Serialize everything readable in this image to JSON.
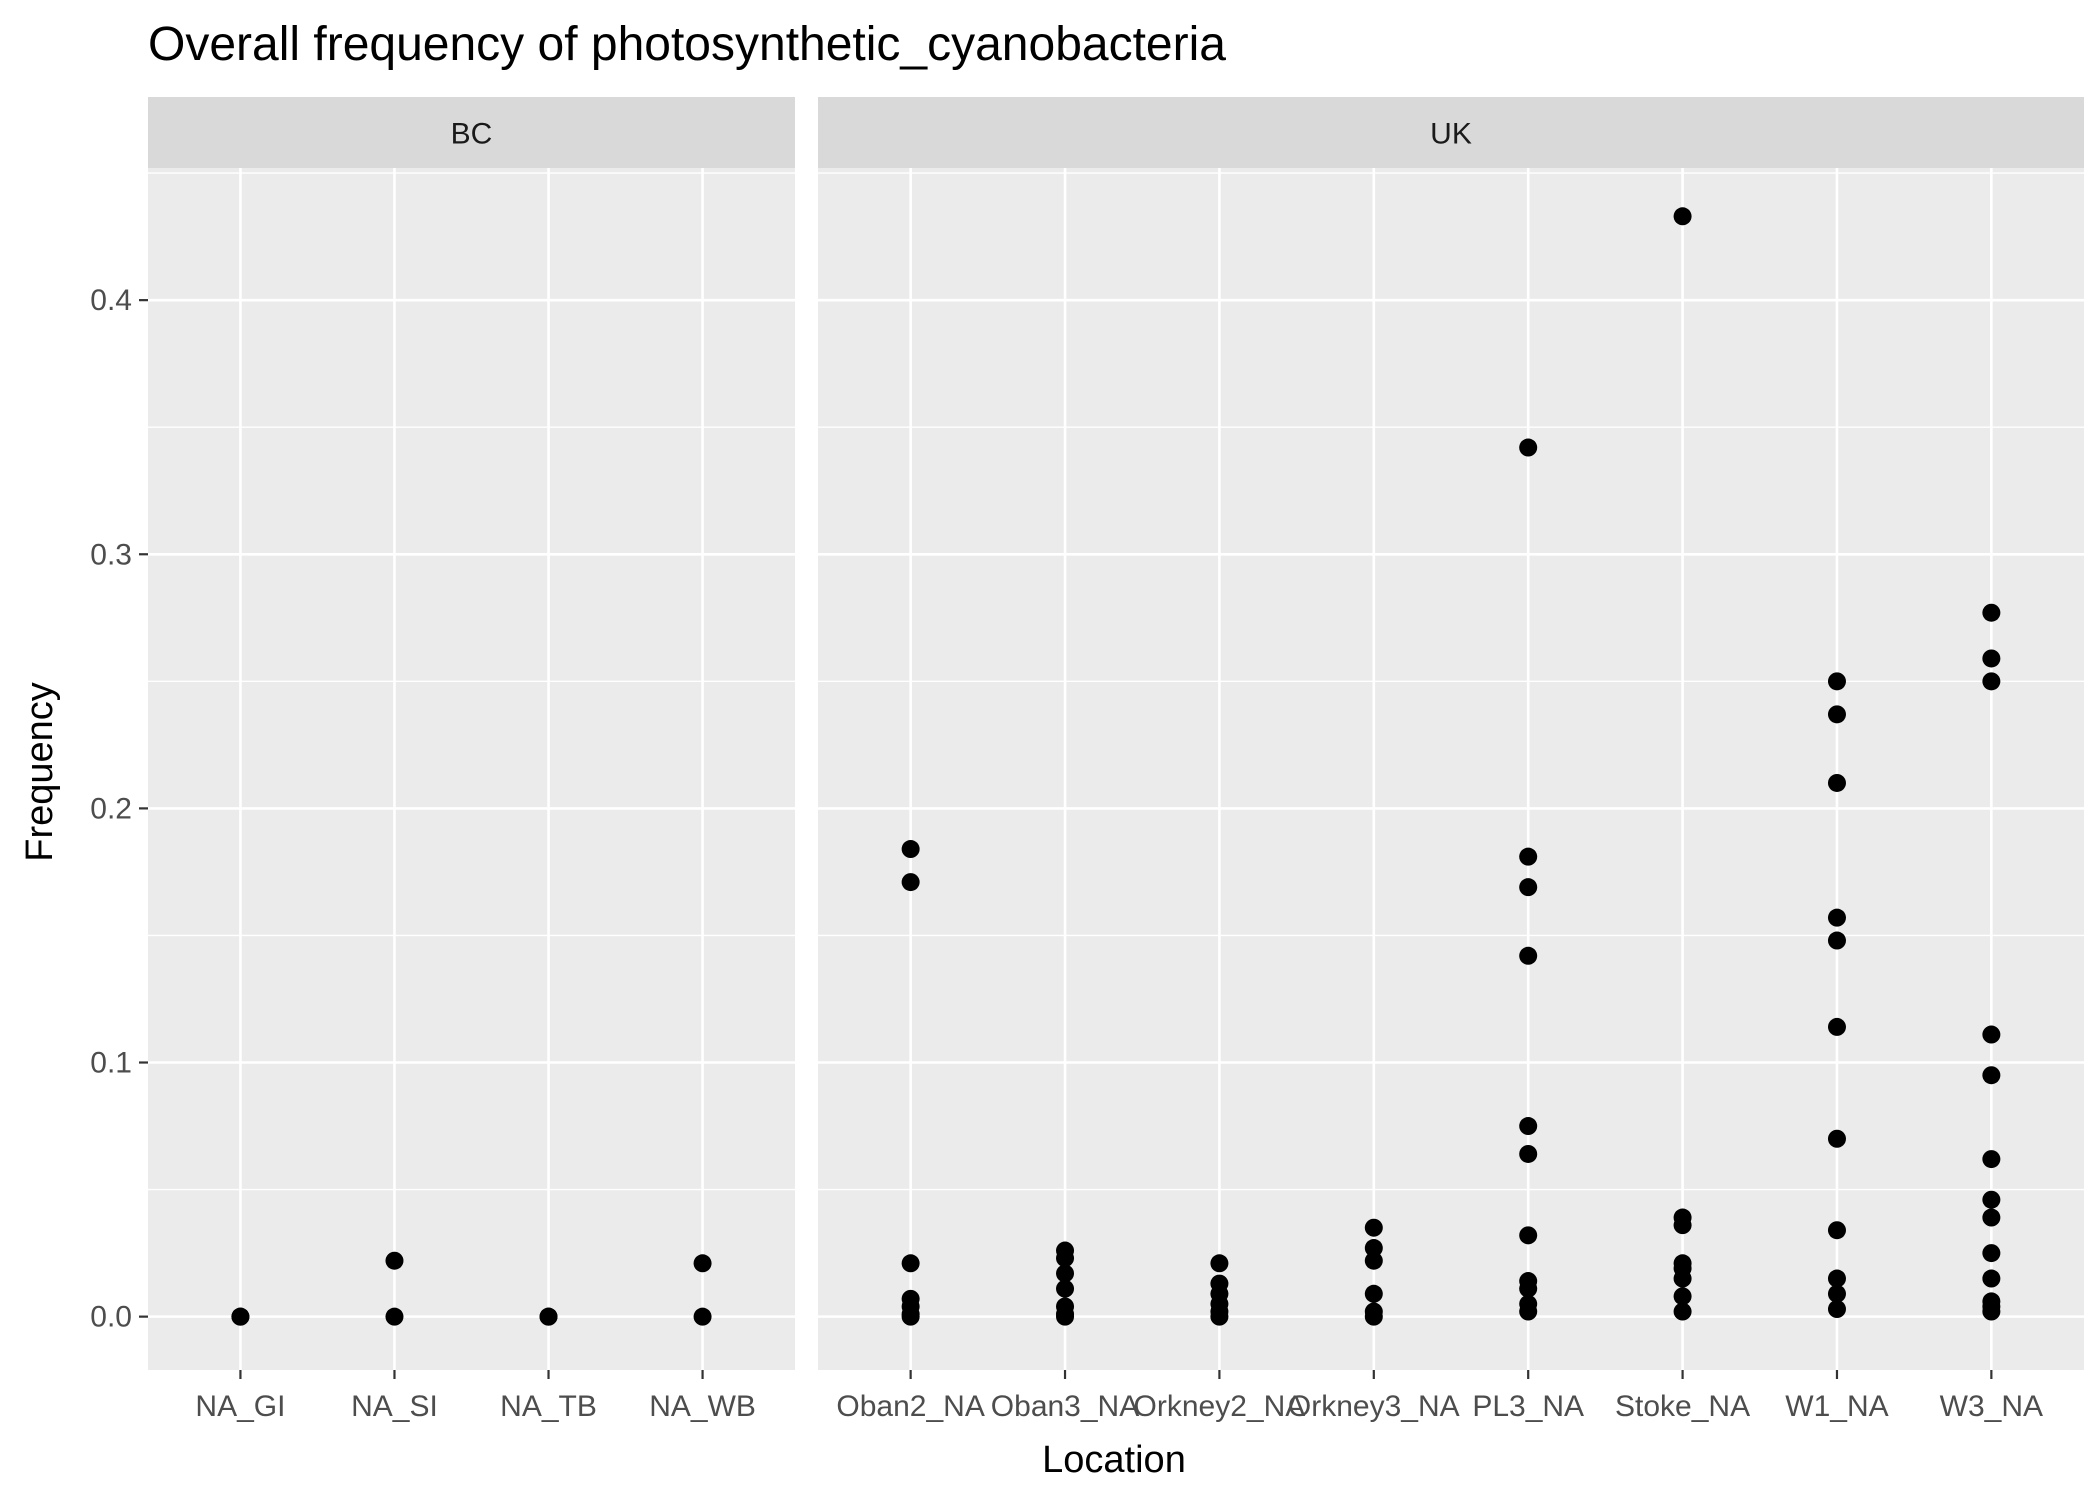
{
  "chart_data": {
    "type": "scatter",
    "title": "Overall frequency of photosynthetic_cyanobacteria",
    "xlabel": "Location",
    "ylabel": "Frequency",
    "ylim": [
      -0.021,
      0.452
    ],
    "yticks": [
      "0.0",
      "0.1",
      "0.2",
      "0.3",
      "0.4"
    ],
    "grid": true,
    "colors": {
      "panel_bg": "#ebebeb",
      "strip_bg": "#d9d9d9",
      "grid": "#ffffff",
      "point": "#000000",
      "tick_text": "#4d4d4d",
      "tick_mark": "#333333"
    },
    "facets": [
      {
        "name": "BC",
        "categories": [
          "NA_GI",
          "NA_SI",
          "NA_TB",
          "NA_WB"
        ],
        "points": [
          {
            "x": "NA_GI",
            "y": 0.0
          },
          {
            "x": "NA_GI",
            "y": 0.0
          },
          {
            "x": "NA_SI",
            "y": 0.022
          },
          {
            "x": "NA_SI",
            "y": 0.0
          },
          {
            "x": "NA_TB",
            "y": 0.0
          },
          {
            "x": "NA_TB",
            "y": 0.0
          },
          {
            "x": "NA_WB",
            "y": 0.021
          },
          {
            "x": "NA_WB",
            "y": 0.0
          }
        ]
      },
      {
        "name": "UK",
        "categories": [
          "Oban2_NA",
          "Oban3_NA",
          "Orkney2_NA",
          "Orkney3_NA",
          "PL3_NA",
          "Stoke_NA",
          "W1_NA",
          "W3_NA"
        ],
        "points": [
          {
            "x": "Oban2_NA",
            "y": 0.184
          },
          {
            "x": "Oban2_NA",
            "y": 0.171
          },
          {
            "x": "Oban2_NA",
            "y": 0.021
          },
          {
            "x": "Oban2_NA",
            "y": 0.007
          },
          {
            "x": "Oban2_NA",
            "y": 0.004
          },
          {
            "x": "Oban2_NA",
            "y": 0.001
          },
          {
            "x": "Oban2_NA",
            "y": 0.0
          },
          {
            "x": "Oban3_NA",
            "y": 0.026
          },
          {
            "x": "Oban3_NA",
            "y": 0.023
          },
          {
            "x": "Oban3_NA",
            "y": 0.017
          },
          {
            "x": "Oban3_NA",
            "y": 0.011
          },
          {
            "x": "Oban3_NA",
            "y": 0.004
          },
          {
            "x": "Oban3_NA",
            "y": 0.001
          },
          {
            "x": "Oban3_NA",
            "y": 0.0
          },
          {
            "x": "Orkney2_NA",
            "y": 0.021
          },
          {
            "x": "Orkney2_NA",
            "y": 0.013
          },
          {
            "x": "Orkney2_NA",
            "y": 0.009
          },
          {
            "x": "Orkney2_NA",
            "y": 0.005
          },
          {
            "x": "Orkney2_NA",
            "y": 0.002
          },
          {
            "x": "Orkney2_NA",
            "y": 0.0
          },
          {
            "x": "Orkney3_NA",
            "y": 0.035
          },
          {
            "x": "Orkney3_NA",
            "y": 0.027
          },
          {
            "x": "Orkney3_NA",
            "y": 0.022
          },
          {
            "x": "Orkney3_NA",
            "y": 0.009
          },
          {
            "x": "Orkney3_NA",
            "y": 0.002
          },
          {
            "x": "Orkney3_NA",
            "y": 0.0
          },
          {
            "x": "PL3_NA",
            "y": 0.342
          },
          {
            "x": "PL3_NA",
            "y": 0.181
          },
          {
            "x": "PL3_NA",
            "y": 0.169
          },
          {
            "x": "PL3_NA",
            "y": 0.142
          },
          {
            "x": "PL3_NA",
            "y": 0.075
          },
          {
            "x": "PL3_NA",
            "y": 0.064
          },
          {
            "x": "PL3_NA",
            "y": 0.032
          },
          {
            "x": "PL3_NA",
            "y": 0.014
          },
          {
            "x": "PL3_NA",
            "y": 0.011
          },
          {
            "x": "PL3_NA",
            "y": 0.005
          },
          {
            "x": "PL3_NA",
            "y": 0.002
          },
          {
            "x": "Stoke_NA",
            "y": 0.433
          },
          {
            "x": "Stoke_NA",
            "y": 0.039
          },
          {
            "x": "Stoke_NA",
            "y": 0.036
          },
          {
            "x": "Stoke_NA",
            "y": 0.021
          },
          {
            "x": "Stoke_NA",
            "y": 0.019
          },
          {
            "x": "Stoke_NA",
            "y": 0.015
          },
          {
            "x": "Stoke_NA",
            "y": 0.008
          },
          {
            "x": "Stoke_NA",
            "y": 0.002
          },
          {
            "x": "W1_NA",
            "y": 0.25
          },
          {
            "x": "W1_NA",
            "y": 0.237
          },
          {
            "x": "W1_NA",
            "y": 0.21
          },
          {
            "x": "W1_NA",
            "y": 0.157
          },
          {
            "x": "W1_NA",
            "y": 0.148
          },
          {
            "x": "W1_NA",
            "y": 0.114
          },
          {
            "x": "W1_NA",
            "y": 0.07
          },
          {
            "x": "W1_NA",
            "y": 0.034
          },
          {
            "x": "W1_NA",
            "y": 0.015
          },
          {
            "x": "W1_NA",
            "y": 0.009
          },
          {
            "x": "W1_NA",
            "y": 0.003
          },
          {
            "x": "W3_NA",
            "y": 0.277
          },
          {
            "x": "W3_NA",
            "y": 0.259
          },
          {
            "x": "W3_NA",
            "y": 0.25
          },
          {
            "x": "W3_NA",
            "y": 0.111
          },
          {
            "x": "W3_NA",
            "y": 0.095
          },
          {
            "x": "W3_NA",
            "y": 0.062
          },
          {
            "x": "W3_NA",
            "y": 0.046
          },
          {
            "x": "W3_NA",
            "y": 0.039
          },
          {
            "x": "W3_NA",
            "y": 0.025
          },
          {
            "x": "W3_NA",
            "y": 0.015
          },
          {
            "x": "W3_NA",
            "y": 0.006
          },
          {
            "x": "W3_NA",
            "y": 0.004
          },
          {
            "x": "W3_NA",
            "y": 0.002
          }
        ]
      }
    ]
  }
}
